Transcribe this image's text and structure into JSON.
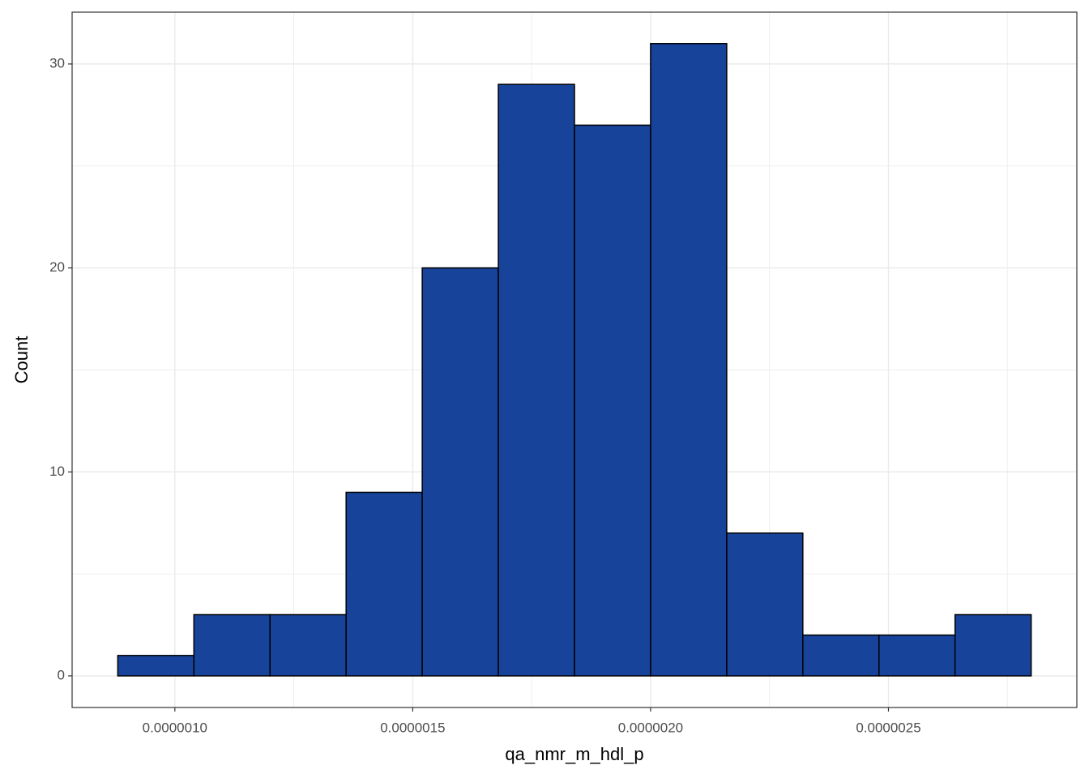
{
  "chart_data": {
    "type": "histogram",
    "x_label": "qa_nmr_m_hdl_p",
    "y_label": "Count",
    "bins": [
      8.8e-07,
      1.04e-06,
      1.2e-06,
      1.36e-06,
      1.52e-06,
      1.68e-06,
      1.84e-06,
      2e-06,
      2.16e-06,
      2.32e-06,
      2.48e-06,
      2.64e-06,
      2.8e-06
    ],
    "counts": [
      1,
      3,
      3,
      9,
      20,
      29,
      27,
      31,
      7,
      2,
      2,
      3
    ],
    "color": "#17439a",
    "edge_color": "#000000",
    "xlim": [
      7.84e-07,
      2.896e-06
    ],
    "xticks": [
      {
        "value": 1e-06,
        "label": "0.0000010"
      },
      {
        "value": 1.5e-06,
        "label": "0.0000015"
      },
      {
        "value": 2e-06,
        "label": "0.0000020"
      },
      {
        "value": 2.5e-06,
        "label": "0.0000025"
      }
    ],
    "x_minor_grid": [
      1.25e-06,
      1.75e-06,
      2.25e-06,
      2.75e-06
    ],
    "ylim": [
      -1.55,
      32.54
    ],
    "yticks": [
      0,
      10,
      20,
      30
    ],
    "y_minor_grid": [
      5,
      15,
      25
    ],
    "grid": true
  }
}
